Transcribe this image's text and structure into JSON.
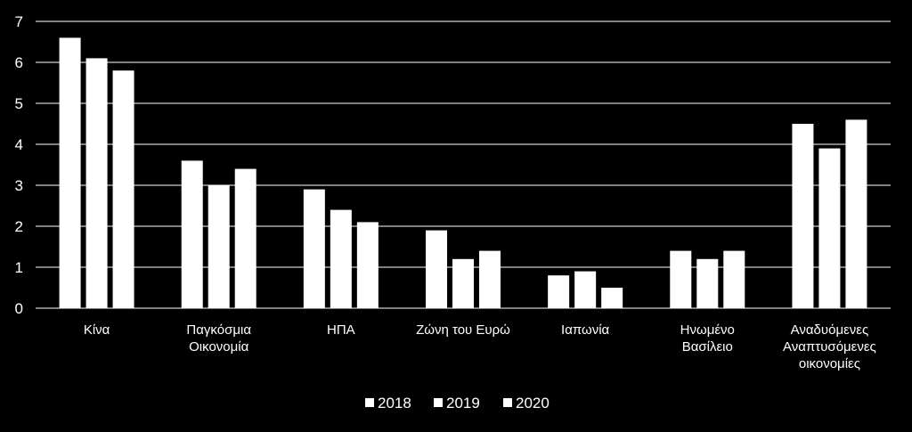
{
  "chart_data": {
    "type": "bar",
    "categories": [
      [
        "Κίνα"
      ],
      [
        "Παγκόσμια",
        "Οικονομία"
      ],
      [
        "ΗΠΑ"
      ],
      [
        "Ζώνη  του  Ευρώ"
      ],
      [
        "Ιαπωνία"
      ],
      [
        "Ηνωμένο",
        "Βασίλειο"
      ],
      [
        "Αναδυόμενες",
        "Αναπτυσόμενες",
        "οικονομίες"
      ]
    ],
    "series": [
      {
        "name": "2018",
        "values": [
          6.6,
          3.6,
          2.9,
          1.9,
          0.8,
          1.4,
          4.5
        ]
      },
      {
        "name": "2019",
        "values": [
          6.1,
          3.0,
          2.4,
          1.2,
          0.9,
          1.2,
          3.9
        ]
      },
      {
        "name": "2020",
        "values": [
          5.8,
          3.4,
          2.1,
          1.4,
          0.5,
          1.4,
          4.6
        ]
      }
    ],
    "ylim": [
      0,
      7
    ],
    "yticks": [
      0,
      1,
      2,
      3,
      4,
      5,
      6,
      7
    ],
    "grid": true,
    "legend_position": "bottom",
    "colors": {
      "background": "#000000",
      "bars": "#ffffff",
      "grid": "#ffffff",
      "text": "#ffffff"
    }
  }
}
